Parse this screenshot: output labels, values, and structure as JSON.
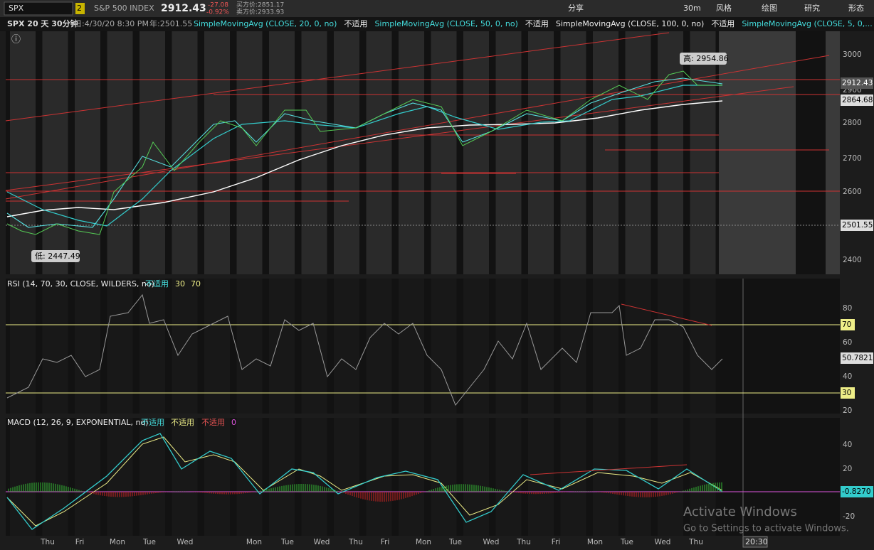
{
  "toolbar": {
    "symbol": "SPX",
    "badge": "2",
    "name": "S&P 500 INDEX",
    "last": "2912.43",
    "change": "-27.08",
    "change_pct": "-0.92%",
    "bid": "买方价:2851.17",
    "ask": "卖方价:2933.93",
    "buttons": [
      "分享",
      "30m",
      "风格",
      "绘图",
      "研究",
      "形态"
    ]
  },
  "chart_header": {
    "symbol": "SPX 20 天 30分钟",
    "date": "日:4/30/20 8:30 PM",
    "year": "年:2501.55",
    "studies": [
      {
        "label": "SimpleMovingAvg (CLOSE, 20, 0, no)",
        "value": "不适用"
      },
      {
        "label": "SimpleMovingAvg (CLOSE, 50, 0, no)",
        "value": "不适用"
      },
      {
        "label": "SimpleMovingAvg (CLOSE, 100, 0, no)",
        "value": "不适用"
      },
      {
        "label": "SimpleMovingAvg (CLOSE, 5, 0,...",
        "value": ""
      }
    ]
  },
  "price_axis": {
    "ticks": [
      "3000",
      "2900",
      "2800",
      "2700",
      "2600",
      "2400"
    ],
    "markers": [
      "2912.43",
      "2864.68",
      "2501.55"
    ],
    "high": "高: 2954.86",
    "low": "低: 2447.49"
  },
  "rsi": {
    "label": "RSI (14, 70, 30, CLOSE, WILDERS, no)",
    "value": "不适用",
    "level_low": "30",
    "level_high": "70",
    "ticks": [
      "80",
      "60",
      "40",
      "20"
    ],
    "markers": [
      "70",
      "50.7821",
      "30"
    ]
  },
  "macd": {
    "label": "MACD (12, 26, 9, EXPONENTIAL, no)",
    "values": [
      "不适用",
      "不适用",
      "不适用",
      "0"
    ],
    "ticks": [
      "40",
      "20",
      "-20"
    ],
    "marker": "-0.8270"
  },
  "x_axis": {
    "labels": [
      "Thu",
      "Fri",
      "Mon",
      "Tue",
      "Wed",
      "Mon",
      "Tue",
      "Wed",
      "Thu",
      "Fri",
      "Mon",
      "Tue",
      "Wed",
      "Thu",
      "Fri",
      "Mon",
      "Tue",
      "Wed",
      "Thu"
    ],
    "cursor_time": "20:30"
  },
  "watermark": {
    "title": "Activate Windows",
    "subtitle": "Go to Settings to activate Windows."
  }
}
